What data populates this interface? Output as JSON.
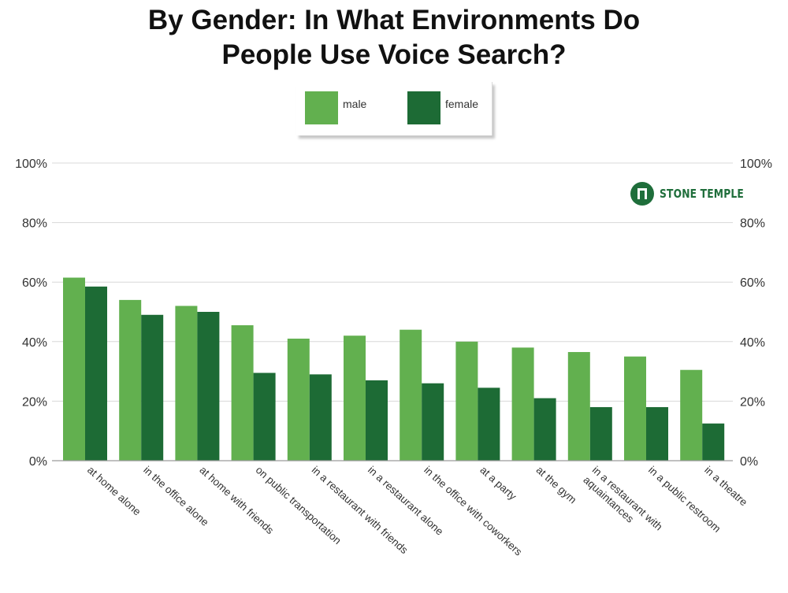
{
  "chart_data": {
    "type": "bar",
    "title_lines": [
      "By Gender: In What Environments Do",
      "People Use Voice Search?"
    ],
    "categories": [
      [
        "at home alone"
      ],
      [
        "in the office alone"
      ],
      [
        "at home with friends"
      ],
      [
        "on public transportation"
      ],
      [
        "in a restaurant with friends"
      ],
      [
        "in a restaurant alone"
      ],
      [
        "in the office with coworkers"
      ],
      [
        "at a party"
      ],
      [
        "at the gym"
      ],
      [
        "in a restaurant with",
        "aquaintances"
      ],
      [
        "in a public restroom"
      ],
      [
        "in a theatre"
      ]
    ],
    "series": [
      {
        "name": "male",
        "color": "#62b04f",
        "values": [
          61.5,
          54,
          52,
          45.5,
          41,
          42,
          44,
          40,
          38,
          36.5,
          35,
          30.5
        ]
      },
      {
        "name": "female",
        "color": "#1d6b35",
        "values": [
          58.5,
          49,
          50,
          29.5,
          29,
          27,
          26,
          24.5,
          21,
          18,
          18,
          12.5
        ]
      }
    ],
    "ylim": [
      0,
      100
    ],
    "yticks": [
      0,
      20,
      40,
      60,
      80,
      100
    ],
    "ytick_labels": [
      "0%",
      "20%",
      "40%",
      "60%",
      "80%",
      "100%"
    ],
    "grid": true,
    "xlabel": "",
    "ylabel": "",
    "legend_position": "top-center"
  },
  "brand": {
    "name": "STONE TEMPLE"
  }
}
